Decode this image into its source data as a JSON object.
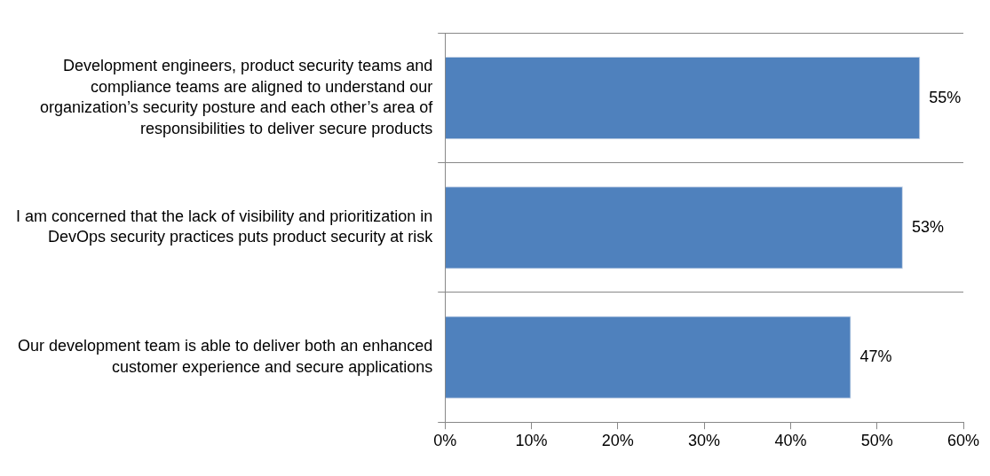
{
  "chart_data": {
    "type": "bar",
    "orientation": "horizontal",
    "categories": [
      "Development engineers, product security teams and compliance teams are aligned to understand our organization’s security posture and each other’s area of responsibilities to deliver secure products",
      "I am concerned that the lack of visibility and prioritization in DevOps security practices puts product security at risk",
      "Our development team is able to deliver both an enhanced customer experience and secure applications"
    ],
    "values": [
      55,
      53,
      47
    ],
    "color": "#4f81bd",
    "value_labels": [
      "55%",
      "53%",
      "47%"
    ],
    "xlim": [
      0,
      60
    ],
    "xticks": [
      {
        "value": 0,
        "label": "0%"
      },
      {
        "value": 10,
        "label": "10%"
      },
      {
        "value": 20,
        "label": "20%"
      },
      {
        "value": 30,
        "label": "30%"
      },
      {
        "value": 40,
        "label": "40%"
      },
      {
        "value": 50,
        "label": "50%"
      },
      {
        "value": 60,
        "label": "60%"
      }
    ],
    "grid": "y",
    "legend": false
  }
}
